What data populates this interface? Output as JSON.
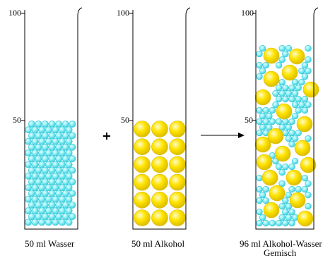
{
  "beakers": [
    {
      "scale_top": "100",
      "scale_mid": "50",
      "caption": "50 ml Wasser",
      "content": "water",
      "fill_level": 0.5
    },
    {
      "scale_top": "100",
      "scale_mid": "50",
      "caption": "50 ml Alkohol",
      "content": "alcohol",
      "fill_level": 0.5
    },
    {
      "scale_top": "100",
      "scale_mid": "50",
      "caption_line1": "96 ml Alkohol-Wasser",
      "caption_line2": "Gemisch",
      "content": "mixture",
      "fill_level": 0.96
    }
  ],
  "operators": {
    "plus": "+",
    "arrow": "→"
  },
  "colors": {
    "water_fill": "#8ff0f5",
    "water_edge": "#36c8d8",
    "alcohol_fill": "#ffe400",
    "alcohol_edge": "#d8b800",
    "line": "#000000"
  }
}
